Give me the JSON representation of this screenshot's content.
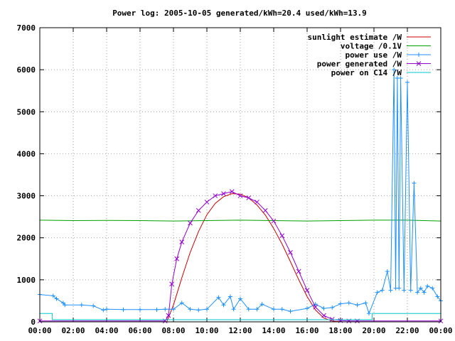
{
  "chart_data": {
    "type": "line",
    "title": "Power log: 2005-10-05 generated/kWh=20.4 used/kWh=13.9",
    "xlabel": "",
    "ylabel": "",
    "xlim": [
      0,
      24
    ],
    "ylim": [
      0,
      7000
    ],
    "grid": true,
    "legend_position": "top-right",
    "x_ticks": [
      {
        "value": 0,
        "label": "00:00"
      },
      {
        "value": 2,
        "label": "02:00"
      },
      {
        "value": 4,
        "label": "04:00"
      },
      {
        "value": 6,
        "label": "06:00"
      },
      {
        "value": 8,
        "label": "08:00"
      },
      {
        "value": 10,
        "label": "10:00"
      },
      {
        "value": 12,
        "label": "12:00"
      },
      {
        "value": 14,
        "label": "14:00"
      },
      {
        "value": 16,
        "label": "16:00"
      },
      {
        "value": 18,
        "label": "18:00"
      },
      {
        "value": 20,
        "label": "20:00"
      },
      {
        "value": 22,
        "label": "22:00"
      },
      {
        "value": 24,
        "label": "00:00"
      }
    ],
    "y_ticks": [
      {
        "value": 0,
        "label": "0"
      },
      {
        "value": 1000,
        "label": "1000"
      },
      {
        "value": 2000,
        "label": "2000"
      },
      {
        "value": 3000,
        "label": "3000"
      },
      {
        "value": 4000,
        "label": "4000"
      },
      {
        "value": 5000,
        "label": "5000"
      },
      {
        "value": 6000,
        "label": "6000"
      },
      {
        "value": 7000,
        "label": "7000"
      }
    ],
    "series": [
      {
        "name": "sunlight estimate /W",
        "color": "#cc0000",
        "style": "line",
        "x": [
          7.6,
          8.0,
          8.5,
          9.0,
          9.5,
          10.0,
          10.5,
          11.0,
          11.5,
          12.0,
          12.5,
          13.0,
          13.5,
          14.0,
          14.5,
          15.0,
          15.5,
          16.0,
          16.5,
          17.0,
          17.5,
          18.0,
          18.5
        ],
        "y": [
          0,
          400,
          1050,
          1650,
          2150,
          2550,
          2820,
          2980,
          3050,
          3040,
          2950,
          2780,
          2540,
          2220,
          1850,
          1430,
          1000,
          600,
          280,
          90,
          20,
          0,
          0
        ]
      },
      {
        "name": "voltage /0.1V",
        "color": "#00a000",
        "style": "line",
        "x": [
          0,
          2,
          4,
          6,
          8,
          10,
          12,
          14,
          16,
          18,
          20,
          22,
          24
        ],
        "y": [
          2420,
          2410,
          2415,
          2410,
          2400,
          2410,
          2420,
          2410,
          2400,
          2410,
          2420,
          2420,
          2400
        ]
      },
      {
        "name": "power use /W",
        "color": "#1e90ff",
        "style": "linespoints",
        "marker": "plus",
        "x": [
          0,
          0.8,
          1.0,
          1.4,
          1.5,
          2.5,
          3.2,
          3.8,
          4.0,
          5.0,
          6.0,
          7.0,
          7.5,
          8.0,
          8.5,
          9.0,
          9.5,
          10.0,
          10.7,
          11.0,
          11.4,
          11.6,
          12.0,
          12.5,
          13.0,
          13.3,
          14.0,
          14.5,
          15.0,
          16.0,
          16.5,
          17.0,
          17.5,
          18.0,
          18.5,
          19.0,
          19.5,
          19.7,
          20.2,
          20.5,
          20.8,
          21.0,
          21.2,
          21.3,
          21.4,
          21.5,
          21.6,
          21.8,
          22.0,
          22.2,
          22.4,
          22.6,
          22.8,
          23.0,
          23.2,
          23.5,
          23.8,
          24.0
        ],
        "y": [
          650,
          620,
          550,
          450,
          400,
          400,
          380,
          280,
          300,
          290,
          290,
          290,
          300,
          300,
          450,
          300,
          280,
          300,
          580,
          400,
          600,
          300,
          550,
          300,
          300,
          420,
          300,
          300,
          250,
          320,
          420,
          320,
          340,
          430,
          450,
          400,
          450,
          200,
          700,
          750,
          1200,
          750,
          6000,
          800,
          5800,
          800,
          5800,
          750,
          5700,
          750,
          3300,
          700,
          800,
          700,
          850,
          800,
          600,
          500
        ]
      },
      {
        "name": "power generated /W",
        "color": "#9400d3",
        "style": "linespoints",
        "marker": "cross",
        "x": [
          0,
          7.5,
          7.7,
          7.9,
          8.2,
          8.5,
          9.0,
          9.5,
          10.0,
          10.5,
          11.0,
          11.5,
          12.0,
          12.5,
          13.0,
          13.5,
          14.0,
          14.5,
          15.0,
          15.5,
          16.0,
          16.5,
          17.0,
          17.5,
          18.0,
          18.5,
          19.0,
          24.0
        ],
        "y": [
          20,
          20,
          150,
          900,
          1500,
          1900,
          2350,
          2650,
          2850,
          3000,
          3050,
          3100,
          3000,
          2950,
          2850,
          2650,
          2400,
          2050,
          1650,
          1200,
          750,
          350,
          150,
          60,
          30,
          20,
          20,
          20
        ]
      },
      {
        "name": "power on C14 /W",
        "color": "#00c8c8",
        "style": "line",
        "x": [
          0,
          0.75,
          0.75,
          19.9,
          19.9,
          24
        ],
        "y": [
          200,
          200,
          50,
          50,
          200,
          200
        ]
      }
    ]
  }
}
